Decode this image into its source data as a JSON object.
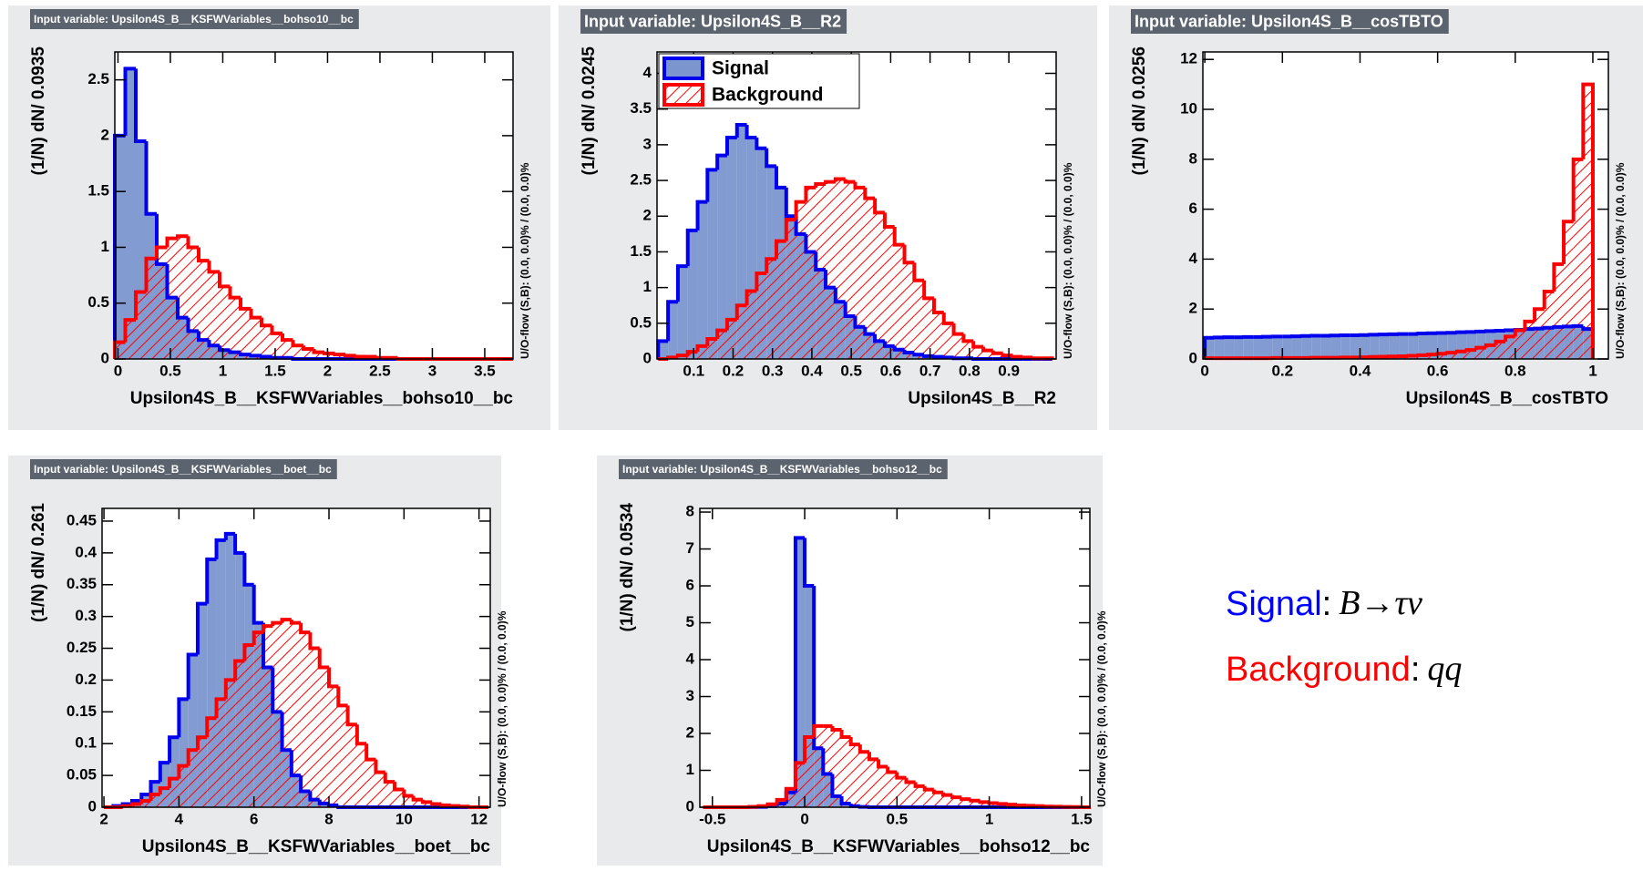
{
  "chart_data": [
    {
      "type": "histogram",
      "title": "Input variable: Upsilon4S_B__KSFWVariables__bohso10__bc",
      "x_label": "Upsilon4S_B__KSFWVariables__bohso10__bc",
      "y_label": "(1/N) dN/ 0.0935",
      "y2_label": "U/O-flow (S,B): (0.0, 0.0)% / (0.0, 0.0)%",
      "bins": [
        -0.03,
        0.07,
        0.17,
        0.27,
        0.37,
        0.47,
        0.57,
        0.67,
        0.77,
        0.87,
        0.97,
        1.07,
        1.17,
        1.27,
        1.37,
        1.47,
        1.57,
        1.67,
        1.77,
        1.87,
        1.97,
        2.07,
        2.17,
        2.27,
        2.37,
        2.47,
        2.57,
        2.67,
        2.77,
        2.87,
        2.97,
        3.07,
        3.17,
        3.27,
        3.37,
        3.47,
        3.57,
        3.67,
        3.77
      ],
      "series": [
        {
          "color": "#0000ee",
          "fill": "#7b96cf",
          "values": [
            2.0,
            2.6,
            1.95,
            1.3,
            0.85,
            0.55,
            0.37,
            0.25,
            0.17,
            0.12,
            0.08,
            0.06,
            0.04,
            0.03,
            0.02,
            0.01,
            0.01,
            0,
            0,
            0,
            0,
            0,
            0,
            0,
            0,
            0,
            0,
            0,
            0,
            0,
            0,
            0,
            0,
            0,
            0,
            0,
            0,
            0
          ]
        },
        {
          "color": "#ff0000",
          "pattern": "hatched",
          "values": [
            0.15,
            0.35,
            0.6,
            0.9,
            1.0,
            1.08,
            1.1,
            1.0,
            0.88,
            0.78,
            0.65,
            0.55,
            0.45,
            0.37,
            0.3,
            0.23,
            0.17,
            0.12,
            0.09,
            0.06,
            0.05,
            0.04,
            0.03,
            0.02,
            0.02,
            0.01,
            0.01,
            0,
            0,
            0,
            0,
            0,
            0,
            0,
            0,
            0,
            0,
            0
          ]
        }
      ],
      "xlim": [
        -0.03,
        3.77
      ],
      "xticks": [
        0,
        0.5,
        1,
        1.5,
        2,
        2.5,
        3,
        3.5
      ],
      "ylim": [
        0,
        2.75
      ],
      "yticks": [
        0,
        0.5,
        1,
        1.5,
        2,
        2.5
      ]
    },
    {
      "type": "histogram",
      "title": "Input variable: Upsilon4S_B__R2",
      "x_label": "Upsilon4S_B__R2",
      "y_label": "(1/N) dN/ 0.0245",
      "y2_label": "U/O-flow (S,B): (0.0, 0.0)% / (0.0, 0.0)%",
      "legend": "upper left",
      "bins": [
        0.01,
        0.035,
        0.06,
        0.085,
        0.11,
        0.135,
        0.16,
        0.185,
        0.21,
        0.235,
        0.26,
        0.285,
        0.31,
        0.335,
        0.36,
        0.385,
        0.41,
        0.435,
        0.46,
        0.485,
        0.51,
        0.535,
        0.56,
        0.585,
        0.61,
        0.635,
        0.66,
        0.685,
        0.71,
        0.735,
        0.76,
        0.785,
        0.81,
        0.835,
        0.86,
        0.885,
        0.91,
        0.935,
        0.96,
        0.985,
        1.01
      ],
      "series": [
        {
          "name": "Signal",
          "color": "#0000ee",
          "fill": "#7b96cf",
          "values": [
            0.25,
            0.8,
            1.3,
            1.8,
            2.2,
            2.65,
            2.85,
            3.1,
            3.28,
            3.1,
            2.95,
            2.7,
            2.4,
            2.0,
            1.75,
            1.5,
            1.25,
            1.0,
            0.8,
            0.6,
            0.45,
            0.35,
            0.25,
            0.18,
            0.13,
            0.09,
            0.06,
            0.04,
            0.03,
            0.02,
            0.01,
            0.01,
            0,
            0,
            0,
            0,
            0,
            0,
            0,
            0
          ]
        },
        {
          "name": "Background",
          "color": "#ff0000",
          "pattern": "hatched",
          "values": [
            0,
            0.02,
            0.05,
            0.1,
            0.18,
            0.28,
            0.4,
            0.55,
            0.75,
            0.95,
            1.2,
            1.4,
            1.65,
            1.95,
            2.2,
            2.4,
            2.45,
            2.48,
            2.52,
            2.48,
            2.4,
            2.25,
            2.05,
            1.85,
            1.6,
            1.35,
            1.1,
            0.85,
            0.65,
            0.5,
            0.35,
            0.25,
            0.17,
            0.12,
            0.08,
            0.05,
            0.03,
            0.02,
            0.01,
            0.01
          ]
        }
      ],
      "xlim": [
        0.007,
        1.02
      ],
      "xticks": [
        0.1,
        0.2,
        0.3,
        0.4,
        0.5,
        0.6,
        0.7,
        0.8,
        0.9
      ],
      "ylim": [
        0,
        4.3
      ],
      "yticks": [
        0,
        0.5,
        1,
        1.5,
        2,
        2.5,
        3,
        3.5,
        4
      ]
    },
    {
      "type": "histogram",
      "title": "Input variable: Upsilon4S_B__cosTBTO",
      "x_label": "Upsilon4S_B__cosTBTO",
      "y_label": "(1/N) dN/ 0.0256",
      "y2_label": "U/O-flow (S,B): (0.0, 0.0)% / (0.0, 0.0)%",
      "bins": [
        0,
        0.025,
        0.05,
        0.075,
        0.1,
        0.125,
        0.15,
        0.175,
        0.2,
        0.225,
        0.25,
        0.275,
        0.3,
        0.325,
        0.35,
        0.375,
        0.4,
        0.425,
        0.45,
        0.475,
        0.5,
        0.525,
        0.55,
        0.575,
        0.6,
        0.625,
        0.65,
        0.675,
        0.7,
        0.725,
        0.75,
        0.775,
        0.8,
        0.825,
        0.85,
        0.875,
        0.9,
        0.925,
        0.95,
        0.975,
        1.0
      ],
      "series": [
        {
          "color": "#0000ee",
          "fill": "#7b96cf",
          "values": [
            0.85,
            0.86,
            0.87,
            0.87,
            0.88,
            0.88,
            0.89,
            0.9,
            0.9,
            0.91,
            0.92,
            0.93,
            0.93,
            0.94,
            0.95,
            0.95,
            0.96,
            0.97,
            0.98,
            0.99,
            1.0,
            1.0,
            1.02,
            1.03,
            1.04,
            1.05,
            1.07,
            1.08,
            1.1,
            1.12,
            1.13,
            1.15,
            1.17,
            1.2,
            1.22,
            1.25,
            1.28,
            1.3,
            1.32,
            1.2
          ]
        },
        {
          "color": "#ff0000",
          "pattern": "hatched",
          "values": [
            0.03,
            0.03,
            0.03,
            0.03,
            0.03,
            0.03,
            0.03,
            0.04,
            0.04,
            0.04,
            0.04,
            0.05,
            0.05,
            0.05,
            0.06,
            0.06,
            0.07,
            0.08,
            0.09,
            0.1,
            0.11,
            0.13,
            0.15,
            0.18,
            0.21,
            0.25,
            0.3,
            0.36,
            0.45,
            0.55,
            0.7,
            0.9,
            1.15,
            1.5,
            2.0,
            2.7,
            3.8,
            5.5,
            8.0,
            11.0
          ]
        }
      ],
      "xlim": [
        -0.005,
        1.04
      ],
      "xticks": [
        0,
        0.2,
        0.4,
        0.6,
        0.8,
        1
      ],
      "ylim": [
        0,
        12.3
      ],
      "yticks": [
        0,
        2,
        4,
        6,
        8,
        10,
        12
      ]
    },
    {
      "type": "histogram",
      "title": "Input variable: Upsilon4S_B__KSFWVariables__boet__bc",
      "x_label": "Upsilon4S_B__KSFWVariables__boet__bc",
      "y_label": "(1/N) dN/ 0.261",
      "y2_label": "U/O-flow (S,B): (0.0, 0.0)% / (0.0, 0.0)%",
      "bins": [
        2,
        2.25,
        2.5,
        2.75,
        3,
        3.25,
        3.5,
        3.75,
        4,
        4.25,
        4.5,
        4.75,
        5,
        5.25,
        5.5,
        5.75,
        6,
        6.25,
        6.5,
        6.75,
        7,
        7.25,
        7.5,
        7.75,
        8,
        8.25,
        8.5,
        8.75,
        9,
        9.25,
        9.5,
        9.75,
        10,
        10.25,
        10.5,
        10.75,
        11,
        11.25,
        11.5,
        11.75,
        12,
        12.25
      ],
      "series": [
        {
          "color": "#0000ee",
          "fill": "#7b96cf",
          "values": [
            0,
            0.002,
            0.005,
            0.01,
            0.02,
            0.04,
            0.07,
            0.11,
            0.17,
            0.24,
            0.32,
            0.39,
            0.42,
            0.43,
            0.4,
            0.35,
            0.29,
            0.22,
            0.15,
            0.09,
            0.05,
            0.025,
            0.012,
            0.006,
            0.003,
            0,
            0,
            0,
            0,
            0,
            0,
            0,
            0,
            0,
            0,
            0,
            0,
            0,
            0,
            0,
            0
          ]
        },
        {
          "color": "#ff0000",
          "pattern": "hatched",
          "values": [
            0,
            0,
            0.002,
            0.005,
            0.01,
            0.02,
            0.03,
            0.045,
            0.065,
            0.09,
            0.11,
            0.14,
            0.17,
            0.2,
            0.23,
            0.255,
            0.275,
            0.285,
            0.29,
            0.295,
            0.29,
            0.275,
            0.25,
            0.22,
            0.19,
            0.16,
            0.13,
            0.1,
            0.075,
            0.055,
            0.04,
            0.028,
            0.018,
            0.012,
            0.008,
            0.005,
            0.003,
            0.002,
            0.001,
            0,
            0
          ]
        }
      ],
      "xlim": [
        1.95,
        12.3
      ],
      "xticks": [
        2,
        4,
        6,
        8,
        10,
        12
      ],
      "ylim": [
        0,
        0.47
      ],
      "yticks": [
        0,
        0.05,
        0.1,
        0.15,
        0.2,
        0.25,
        0.3,
        0.35,
        0.4,
        0.45
      ]
    },
    {
      "type": "histogram",
      "title": "Input variable: Upsilon4S_B__KSFWVariables__bohso12__bc",
      "x_label": "Upsilon4S_B__KSFWVariables__bohso12__bc",
      "y_label": "(1/N) dN/ 0.0534",
      "y2_label": "U/O-flow (S,B): (0.0, 0.0)% / (0.0, 0.0)%",
      "bins": [
        -0.55,
        -0.5,
        -0.45,
        -0.4,
        -0.35,
        -0.3,
        -0.25,
        -0.2,
        -0.15,
        -0.1,
        -0.05,
        0,
        0.05,
        0.1,
        0.15,
        0.2,
        0.25,
        0.3,
        0.35,
        0.4,
        0.45,
        0.5,
        0.55,
        0.6,
        0.65,
        0.7,
        0.75,
        0.8,
        0.85,
        0.9,
        0.95,
        1.0,
        1.05,
        1.1,
        1.15,
        1.2,
        1.25,
        1.3,
        1.35,
        1.4,
        1.45,
        1.5,
        1.55
      ],
      "series": [
        {
          "color": "#0000ee",
          "fill": "#7b96cf",
          "values": [
            0,
            0,
            0,
            0,
            0,
            0.005,
            0.01,
            0.03,
            0.1,
            0.4,
            7.3,
            6.0,
            1.6,
            0.9,
            0.3,
            0.1,
            0.03,
            0.01,
            0,
            0,
            0,
            0,
            0,
            0,
            0,
            0,
            0,
            0,
            0,
            0,
            0,
            0,
            0,
            0,
            0,
            0,
            0,
            0,
            0,
            0,
            0,
            0
          ]
        },
        {
          "color": "#ff0000",
          "pattern": "hatched",
          "values": [
            0,
            0,
            0,
            0,
            0,
            0.01,
            0.03,
            0.08,
            0.2,
            0.5,
            1.2,
            1.9,
            2.2,
            2.2,
            2.1,
            1.9,
            1.7,
            1.5,
            1.3,
            1.1,
            0.95,
            0.8,
            0.68,
            0.57,
            0.48,
            0.4,
            0.33,
            0.27,
            0.22,
            0.18,
            0.14,
            0.11,
            0.09,
            0.07,
            0.05,
            0.04,
            0.03,
            0.02,
            0.015,
            0.01,
            0.005,
            0
          ]
        }
      ],
      "xlim": [
        -0.568,
        1.545
      ],
      "xticks": [
        -0.5,
        0,
        0.5,
        1,
        1.5
      ],
      "ylim": [
        0,
        8.1
      ],
      "yticks": [
        0,
        1,
        2,
        3,
        4,
        5,
        6,
        7,
        8
      ]
    }
  ],
  "note": [
    {
      "label": "Signal",
      "color": "#0000ff",
      "sep": ":",
      "text": "B→τν"
    },
    {
      "label": "Background",
      "color": "#ff0000",
      "sep": ":",
      "text": "qq"
    }
  ]
}
